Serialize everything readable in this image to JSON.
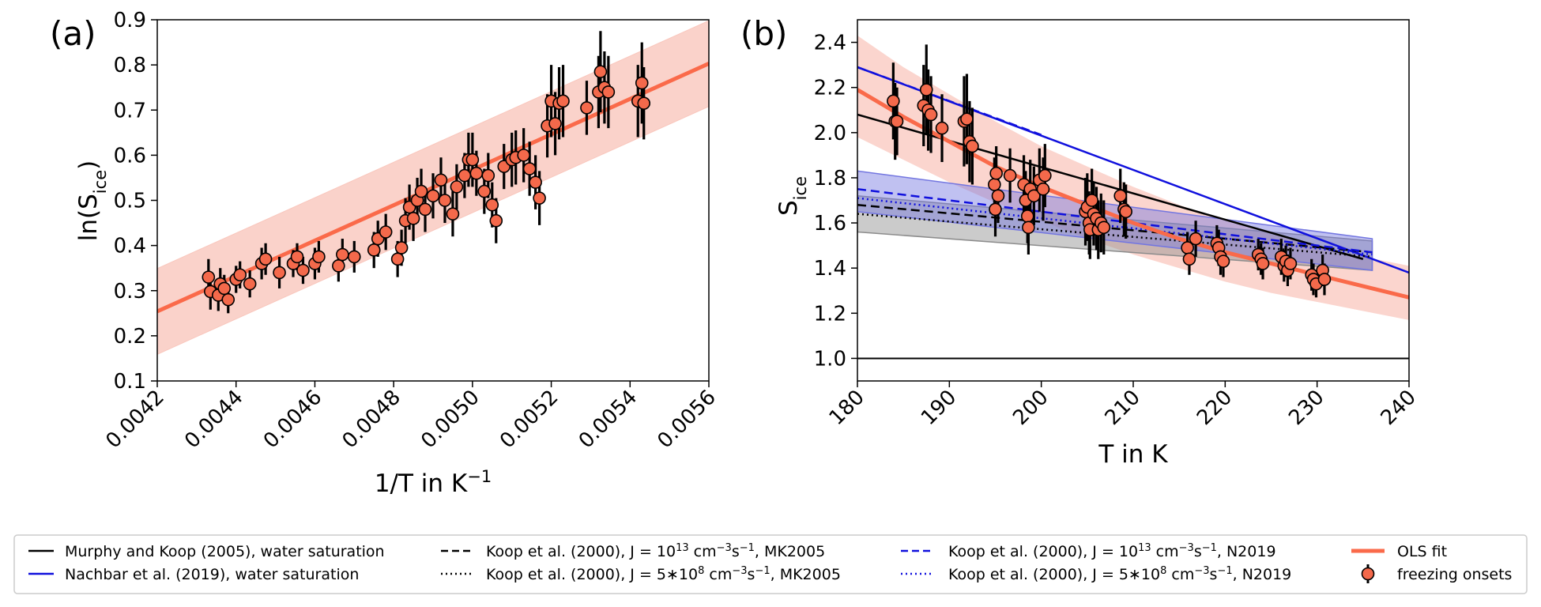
{
  "colors": {
    "fit": "#fa6a4a",
    "band": "#f9c7bd",
    "marker": "#f4694b",
    "murphy": "#000000",
    "nachbar": "#1010dd",
    "band_mk": "#8c8c8c",
    "band_n": "#7376e0",
    "band_mix": "#8a6db5"
  },
  "legend": {
    "items": [
      {
        "key": "murphy",
        "label": "Murphy and Koop (2005), water saturation"
      },
      {
        "key": "nachbar",
        "label": "Nachbar et al. (2019), water saturation"
      },
      {
        "key": "koop13mk",
        "label_parts": [
          "Koop et al. (2000), J = 10",
          "13",
          " cm",
          "−3",
          "s",
          "−1",
          ", MK2005"
        ]
      },
      {
        "key": "koop8mk",
        "label_parts": [
          "Koop et al. (2000), J = 5∗10",
          "8",
          " cm",
          "−3",
          "s",
          "−1",
          ", MK2005"
        ]
      },
      {
        "key": "koop13n",
        "label_parts": [
          "Koop et al. (2000), J = 10",
          "13",
          " cm",
          "−3",
          "s",
          "−1",
          ", N2019"
        ]
      },
      {
        "key": "koop8n",
        "label_parts": [
          "Koop et al. (2000), J = 5∗10",
          "8",
          " cm",
          "−3",
          "s",
          "−1",
          ", N2019"
        ]
      },
      {
        "key": "ols",
        "label": "OLS fit"
      },
      {
        "key": "onsets",
        "label": "freezing onsets"
      }
    ]
  },
  "chart_data": [
    {
      "panel_label": "(a)",
      "type": "scatter",
      "xlabel_parts": [
        "1/T in K",
        "−1"
      ],
      "ylabel_parts": [
        "ln(S",
        "ice",
        ")"
      ],
      "xlim": [
        0.0042,
        0.0056
      ],
      "ylim": [
        0.1,
        0.9
      ],
      "xticks": [
        "0.0042",
        "0.0044",
        "0.0046",
        "0.0048",
        "0.0050",
        "0.0052",
        "0.0054",
        "0.0056"
      ],
      "yticks": [
        "0.1",
        "0.2",
        "0.3",
        "0.4",
        "0.5",
        "0.6",
        "0.7",
        "0.8",
        "0.9"
      ],
      "fit": {
        "x": [
          0.0042,
          0.0056
        ],
        "y": [
          0.254,
          0.803
        ],
        "band_halfwidth": 0.095
      },
      "points": [
        {
          "x": 0.00433,
          "y": 0.33,
          "err": 0.04
        },
        {
          "x": 0.004335,
          "y": 0.298,
          "err": 0.04
        },
        {
          "x": 0.004355,
          "y": 0.29,
          "err": 0.035
        },
        {
          "x": 0.00436,
          "y": 0.315,
          "err": 0.035
        },
        {
          "x": 0.00437,
          "y": 0.305,
          "err": 0.03
        },
        {
          "x": 0.00438,
          "y": 0.28,
          "err": 0.03
        },
        {
          "x": 0.0044,
          "y": 0.325,
          "err": 0.03
        },
        {
          "x": 0.00441,
          "y": 0.335,
          "err": 0.03
        },
        {
          "x": 0.004435,
          "y": 0.315,
          "err": 0.03
        },
        {
          "x": 0.004465,
          "y": 0.36,
          "err": 0.035
        },
        {
          "x": 0.004475,
          "y": 0.37,
          "err": 0.035
        },
        {
          "x": 0.00451,
          "y": 0.34,
          "err": 0.035
        },
        {
          "x": 0.004545,
          "y": 0.36,
          "err": 0.03
        },
        {
          "x": 0.004555,
          "y": 0.375,
          "err": 0.03
        },
        {
          "x": 0.00457,
          "y": 0.345,
          "err": 0.03
        },
        {
          "x": 0.0046,
          "y": 0.36,
          "err": 0.035
        },
        {
          "x": 0.00461,
          "y": 0.375,
          "err": 0.035
        },
        {
          "x": 0.00466,
          "y": 0.355,
          "err": 0.035
        },
        {
          "x": 0.00467,
          "y": 0.38,
          "err": 0.035
        },
        {
          "x": 0.0047,
          "y": 0.375,
          "err": 0.035
        },
        {
          "x": 0.00475,
          "y": 0.39,
          "err": 0.04
        },
        {
          "x": 0.00476,
          "y": 0.415,
          "err": 0.04
        },
        {
          "x": 0.00478,
          "y": 0.43,
          "err": 0.04
        },
        {
          "x": 0.00481,
          "y": 0.37,
          "err": 0.04
        },
        {
          "x": 0.00482,
          "y": 0.395,
          "err": 0.04
        },
        {
          "x": 0.00483,
          "y": 0.455,
          "err": 0.05
        },
        {
          "x": 0.00484,
          "y": 0.485,
          "err": 0.05
        },
        {
          "x": 0.00485,
          "y": 0.46,
          "err": 0.05
        },
        {
          "x": 0.00486,
          "y": 0.5,
          "err": 0.05
        },
        {
          "x": 0.00487,
          "y": 0.52,
          "err": 0.05
        },
        {
          "x": 0.00488,
          "y": 0.48,
          "err": 0.05
        },
        {
          "x": 0.0049,
          "y": 0.51,
          "err": 0.05
        },
        {
          "x": 0.00492,
          "y": 0.545,
          "err": 0.05
        },
        {
          "x": 0.00493,
          "y": 0.5,
          "err": 0.05
        },
        {
          "x": 0.00495,
          "y": 0.47,
          "err": 0.05
        },
        {
          "x": 0.00496,
          "y": 0.53,
          "err": 0.05
        },
        {
          "x": 0.00498,
          "y": 0.555,
          "err": 0.05
        },
        {
          "x": 0.00499,
          "y": 0.59,
          "err": 0.06
        },
        {
          "x": 0.005,
          "y": 0.59,
          "err": 0.06
        },
        {
          "x": 0.00501,
          "y": 0.56,
          "err": 0.05
        },
        {
          "x": 0.00503,
          "y": 0.52,
          "err": 0.05
        },
        {
          "x": 0.00504,
          "y": 0.555,
          "err": 0.05
        },
        {
          "x": 0.00505,
          "y": 0.49,
          "err": 0.05
        },
        {
          "x": 0.00506,
          "y": 0.455,
          "err": 0.05
        },
        {
          "x": 0.00508,
          "y": 0.575,
          "err": 0.05
        },
        {
          "x": 0.0051,
          "y": 0.59,
          "err": 0.06
        },
        {
          "x": 0.00511,
          "y": 0.595,
          "err": 0.06
        },
        {
          "x": 0.00513,
          "y": 0.6,
          "err": 0.06
        },
        {
          "x": 0.005145,
          "y": 0.57,
          "err": 0.06
        },
        {
          "x": 0.00516,
          "y": 0.54,
          "err": 0.06
        },
        {
          "x": 0.00517,
          "y": 0.505,
          "err": 0.06
        },
        {
          "x": 0.00519,
          "y": 0.665,
          "err": 0.07
        },
        {
          "x": 0.0052,
          "y": 0.72,
          "err": 0.08
        },
        {
          "x": 0.00521,
          "y": 0.67,
          "err": 0.07
        },
        {
          "x": 0.00522,
          "y": 0.715,
          "err": 0.08
        },
        {
          "x": 0.00523,
          "y": 0.72,
          "err": 0.08
        },
        {
          "x": 0.00529,
          "y": 0.705,
          "err": 0.06
        },
        {
          "x": 0.00532,
          "y": 0.74,
          "err": 0.08
        },
        {
          "x": 0.005325,
          "y": 0.785,
          "err": 0.09
        },
        {
          "x": 0.005335,
          "y": 0.75,
          "err": 0.08
        },
        {
          "x": 0.005345,
          "y": 0.74,
          "err": 0.08
        },
        {
          "x": 0.00542,
          "y": 0.72,
          "err": 0.08
        },
        {
          "x": 0.00543,
          "y": 0.76,
          "err": 0.09
        },
        {
          "x": 0.005435,
          "y": 0.715,
          "err": 0.08
        }
      ]
    },
    {
      "panel_label": "(b)",
      "type": "scatter",
      "xlabel": "T in K",
      "ylabel_parts": [
        "S",
        "ice"
      ],
      "xlim": [
        180,
        240
      ],
      "ylim": [
        0.9,
        2.5
      ],
      "xticks": [
        "180",
        "190",
        "200",
        "210",
        "220",
        "230",
        "240"
      ],
      "yticks": [
        "1.0",
        "1.2",
        "1.4",
        "1.6",
        "1.8",
        "2.0",
        "2.2",
        "2.4"
      ],
      "reference_line": {
        "y": 1.0
      },
      "fit": {
        "x": [
          180,
          185,
          190,
          195,
          200,
          205,
          210,
          215,
          220,
          225,
          230,
          235,
          240
        ],
        "y": [
          2.19,
          2.07,
          1.96,
          1.85,
          1.76,
          1.68,
          1.6,
          1.53,
          1.47,
          1.42,
          1.37,
          1.32,
          1.27
        ],
        "band_lower": [
          1.98,
          1.88,
          1.78,
          1.69,
          1.61,
          1.53,
          1.46,
          1.4,
          1.34,
          1.29,
          1.25,
          1.21,
          1.17
        ],
        "band_upper": [
          2.43,
          2.29,
          2.17,
          2.05,
          1.94,
          1.85,
          1.76,
          1.68,
          1.61,
          1.55,
          1.5,
          1.45,
          1.41
        ]
      },
      "lines": [
        {
          "key": "murphy",
          "x": [
            180,
            235
          ],
          "y": [
            2.08,
            1.44
          ],
          "style": "solid"
        },
        {
          "key": "nachbar",
          "x": [
            180,
            240
          ],
          "y": [
            2.29,
            1.38
          ],
          "style": "solid"
        },
        {
          "key": "koop13mk",
          "x": [
            180,
            236
          ],
          "y": [
            1.68,
            1.47
          ],
          "style": "dashed"
        },
        {
          "key": "koop8mk",
          "x": [
            180,
            236
          ],
          "y": [
            1.64,
            1.45
          ],
          "style": "dotted"
        },
        {
          "key": "koop13n",
          "x": [
            180,
            236
          ],
          "y": [
            1.75,
            1.47
          ],
          "style": "dashed"
        },
        {
          "key": "koop8n",
          "x": [
            180,
            236
          ],
          "y": [
            1.71,
            1.46
          ],
          "style": "dotted"
        },
        {
          "key": "nachbar_dashed",
          "x": [
            180,
            200
          ],
          "y": [
            2.29,
            1.99
          ],
          "style": "dashed"
        }
      ],
      "bands": [
        {
          "key": "mk",
          "x": [
            180,
            236
          ],
          "lower": [
            1.56,
            1.39
          ],
          "upper": [
            1.72,
            1.52
          ]
        },
        {
          "key": "n",
          "x": [
            180,
            236
          ],
          "lower": [
            1.65,
            1.39
          ],
          "upper": [
            1.83,
            1.53
          ]
        }
      ],
      "points": [
        {
          "x": 183.9,
          "y": 2.14,
          "err": 0.17
        },
        {
          "x": 184.1,
          "y": 2.05,
          "err": 0.17
        },
        {
          "x": 184.3,
          "y": 2.05,
          "err": 0.15
        },
        {
          "x": 187.2,
          "y": 2.12,
          "err": 0.18
        },
        {
          "x": 187.5,
          "y": 2.19,
          "err": 0.2
        },
        {
          "x": 187.7,
          "y": 2.1,
          "err": 0.18
        },
        {
          "x": 188.0,
          "y": 2.08,
          "err": 0.17
        },
        {
          "x": 189.2,
          "y": 2.02,
          "err": 0.15
        },
        {
          "x": 191.6,
          "y": 2.05,
          "err": 0.2
        },
        {
          "x": 191.9,
          "y": 2.06,
          "err": 0.2
        },
        {
          "x": 192.2,
          "y": 1.96,
          "err": 0.18
        },
        {
          "x": 192.5,
          "y": 1.94,
          "err": 0.17
        },
        {
          "x": 194.9,
          "y": 1.77,
          "err": 0.12
        },
        {
          "x": 195.1,
          "y": 1.82,
          "err": 0.12
        },
        {
          "x": 195.3,
          "y": 1.72,
          "err": 0.12
        },
        {
          "x": 195.0,
          "y": 1.66,
          "err": 0.12
        },
        {
          "x": 196.6,
          "y": 1.81,
          "err": 0.12
        },
        {
          "x": 198.1,
          "y": 1.77,
          "err": 0.13
        },
        {
          "x": 198.3,
          "y": 1.7,
          "err": 0.13
        },
        {
          "x": 198.5,
          "y": 1.63,
          "err": 0.12
        },
        {
          "x": 198.6,
          "y": 1.58,
          "err": 0.12
        },
        {
          "x": 198.8,
          "y": 1.75,
          "err": 0.13
        },
        {
          "x": 199.2,
          "y": 1.72,
          "err": 0.13
        },
        {
          "x": 199.8,
          "y": 1.79,
          "err": 0.14
        },
        {
          "x": 200.2,
          "y": 1.75,
          "err": 0.14
        },
        {
          "x": 200.4,
          "y": 1.81,
          "err": 0.14
        },
        {
          "x": 204.8,
          "y": 1.65,
          "err": 0.15
        },
        {
          "x": 205.0,
          "y": 1.67,
          "err": 0.15
        },
        {
          "x": 205.2,
          "y": 1.6,
          "err": 0.14
        },
        {
          "x": 205.3,
          "y": 1.57,
          "err": 0.13
        },
        {
          "x": 205.5,
          "y": 1.7,
          "err": 0.14
        },
        {
          "x": 205.7,
          "y": 1.64,
          "err": 0.14
        },
        {
          "x": 206.0,
          "y": 1.62,
          "err": 0.14
        },
        {
          "x": 206.2,
          "y": 1.57,
          "err": 0.13
        },
        {
          "x": 206.5,
          "y": 1.6,
          "err": 0.13
        },
        {
          "x": 206.8,
          "y": 1.58,
          "err": 0.12
        },
        {
          "x": 208.6,
          "y": 1.72,
          "err": 0.12
        },
        {
          "x": 209.0,
          "y": 1.66,
          "err": 0.12
        },
        {
          "x": 209.2,
          "y": 1.65,
          "err": 0.12
        },
        {
          "x": 215.9,
          "y": 1.49,
          "err": 0.07
        },
        {
          "x": 216.1,
          "y": 1.44,
          "err": 0.07
        },
        {
          "x": 216.8,
          "y": 1.53,
          "err": 0.08
        },
        {
          "x": 219.1,
          "y": 1.51,
          "err": 0.08
        },
        {
          "x": 219.3,
          "y": 1.49,
          "err": 0.08
        },
        {
          "x": 219.5,
          "y": 1.45,
          "err": 0.08
        },
        {
          "x": 219.8,
          "y": 1.43,
          "err": 0.07
        },
        {
          "x": 223.6,
          "y": 1.46,
          "err": 0.07
        },
        {
          "x": 223.9,
          "y": 1.44,
          "err": 0.07
        },
        {
          "x": 224.1,
          "y": 1.42,
          "err": 0.07
        },
        {
          "x": 226.1,
          "y": 1.45,
          "err": 0.08
        },
        {
          "x": 226.4,
          "y": 1.41,
          "err": 0.07
        },
        {
          "x": 226.6,
          "y": 1.43,
          "err": 0.07
        },
        {
          "x": 226.8,
          "y": 1.39,
          "err": 0.07
        },
        {
          "x": 227.1,
          "y": 1.42,
          "err": 0.07
        },
        {
          "x": 229.4,
          "y": 1.37,
          "err": 0.07
        },
        {
          "x": 229.6,
          "y": 1.35,
          "err": 0.07
        },
        {
          "x": 229.9,
          "y": 1.33,
          "err": 0.06
        },
        {
          "x": 230.6,
          "y": 1.39,
          "err": 0.07
        },
        {
          "x": 230.8,
          "y": 1.35,
          "err": 0.07
        }
      ]
    }
  ]
}
